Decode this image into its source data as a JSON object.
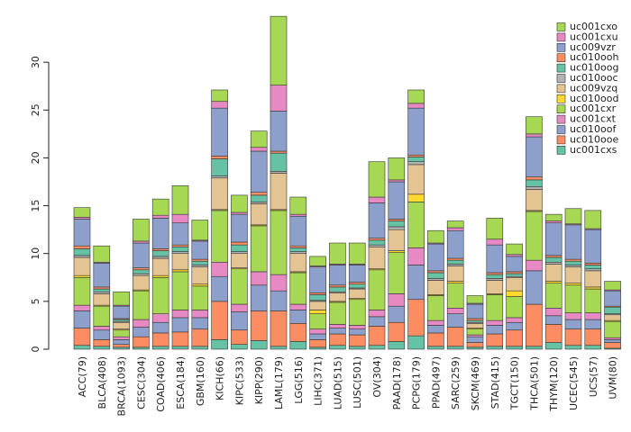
{
  "chart_data": {
    "type": "bar",
    "stacked": true,
    "title": "",
    "xlabel": "",
    "ylabel": "",
    "ylim": [
      0,
      35
    ],
    "yticks": [
      0,
      5,
      10,
      15,
      20,
      25,
      30
    ],
    "categories": [
      "ACC(79)",
      "BLCA(408)",
      "BRCA(1093)",
      "CESC(304)",
      "COAD(406)",
      "ESCA(184)",
      "GBM(160)",
      "KICH(66)",
      "KIPC(533)",
      "KIPP(290)",
      "LAML(179)",
      "LGG(516)",
      "LIHC(371)",
      "LUAD(515)",
      "LUSC(501)",
      "OV(304)",
      "PAAD(178)",
      "PCPG(179)",
      "PPAD(497)",
      "SARC(259)",
      "SKCM(469)",
      "STAD(415)",
      "TGCT(150)",
      "THCA(501)",
      "THYM(120)",
      "UCEC(545)",
      "UCS(57)",
      "UVM(80)"
    ],
    "series": [
      {
        "name": "uc001cxs",
        "color": "#66c2a5",
        "values": [
          0.4,
          0.3,
          0.2,
          0.2,
          0.3,
          0.3,
          0.3,
          1.0,
          0.5,
          0.9,
          0.3,
          0.8,
          0.2,
          0.4,
          0.3,
          0.4,
          0.8,
          1.4,
          0.3,
          0.3,
          0.2,
          0.3,
          0.3,
          0.3,
          0.7,
          0.4,
          0.4,
          0.1
        ]
      },
      {
        "name": "uc010ooe",
        "color": "#fc8d62",
        "values": [
          1.8,
          0.7,
          0.3,
          1.1,
          1.4,
          1.5,
          1.8,
          4.0,
          1.5,
          3.1,
          3.7,
          1.9,
          0.8,
          1.2,
          1.2,
          2.0,
          2.0,
          3.8,
          1.4,
          2.0,
          0.5,
          1.3,
          1.7,
          4.4,
          1.9,
          1.7,
          1.7,
          0.6
        ]
      },
      {
        "name": "uc010oof",
        "color": "#8da0cb",
        "values": [
          1.8,
          1.0,
          0.5,
          1.0,
          1.1,
          1.5,
          1.2,
          2.6,
          1.9,
          2.7,
          2.1,
          1.4,
          0.6,
          0.6,
          0.6,
          1.0,
          1.7,
          3.6,
          0.8,
          1.4,
          0.6,
          0.9,
          0.8,
          3.5,
          0.9,
          1.0,
          1.0,
          0.3
        ]
      },
      {
        "name": "uc001cxt",
        "color": "#e78ac3",
        "values": [
          0.6,
          0.4,
          0.3,
          0.8,
          0.9,
          0.8,
          0.8,
          1.5,
          0.8,
          1.4,
          1.7,
          0.6,
          0.5,
          0.4,
          0.4,
          0.7,
          1.3,
          1.8,
          0.5,
          0.6,
          0.2,
          0.5,
          0.5,
          1.1,
          0.8,
          0.7,
          0.7,
          0.2
        ]
      },
      {
        "name": "uc001cxr",
        "color": "#a6d854",
        "values": [
          2.9,
          2.1,
          0.7,
          3.0,
          3.8,
          4.0,
          2.5,
          5.4,
          3.7,
          4.8,
          6.7,
          3.3,
          1.6,
          2.3,
          2.7,
          4.2,
          4.3,
          4.8,
          2.6,
          2.6,
          0.6,
          2.7,
          2.2,
          5.1,
          2.6,
          2.9,
          2.5,
          1.7
        ]
      },
      {
        "name": "uc010ood",
        "color": "#ffd92f",
        "values": [
          0.2,
          0.1,
          0.1,
          0.1,
          0.2,
          0.2,
          0.2,
          0.1,
          0.1,
          0.1,
          0.1,
          0.1,
          0.4,
          0.1,
          0.1,
          0.1,
          0.2,
          0.8,
          0.1,
          0.2,
          0.1,
          0.1,
          0.6,
          0.1,
          0.2,
          0.2,
          0.2,
          0.1
        ]
      },
      {
        "name": "uc009vzq",
        "color": "#e5c494",
        "values": [
          1.9,
          1.2,
          0.7,
          1.5,
          1.8,
          1.7,
          1.8,
          3.3,
          1.5,
          2.2,
          3.8,
          1.9,
          0.9,
          0.9,
          1.0,
          2.3,
          2.2,
          3.1,
          1.5,
          1.6,
          0.5,
          1.4,
          1.4,
          2.2,
          1.8,
          1.7,
          1.7,
          0.6
        ]
      },
      {
        "name": "uc010ooc",
        "color": "#b3b3b3",
        "values": [
          0.2,
          0.2,
          0.1,
          0.2,
          0.2,
          0.2,
          0.2,
          0.2,
          0.2,
          0.2,
          0.2,
          0.2,
          0.1,
          0.1,
          0.1,
          0.2,
          0.3,
          0.3,
          0.2,
          0.2,
          0.1,
          0.2,
          0.1,
          0.3,
          0.2,
          0.2,
          0.2,
          0.1
        ]
      },
      {
        "name": "uc010oog",
        "color": "#66c2a5",
        "values": [
          0.7,
          0.3,
          0.2,
          0.4,
          0.6,
          0.5,
          0.4,
          1.8,
          0.7,
          0.7,
          1.9,
          0.4,
          0.6,
          0.5,
          0.4,
          0.5,
          0.6,
          0.5,
          0.6,
          0.4,
          0.2,
          0.4,
          0.3,
          0.7,
          0.5,
          0.4,
          0.4,
          0.7
        ]
      },
      {
        "name": "uc010ooh",
        "color": "#fc8d62",
        "values": [
          0.3,
          0.2,
          0.1,
          0.2,
          0.2,
          0.2,
          0.2,
          0.3,
          0.3,
          0.3,
          0.2,
          0.2,
          0.2,
          0.2,
          0.2,
          0.2,
          0.2,
          0.2,
          0.2,
          0.2,
          0.2,
          0.2,
          0.2,
          0.3,
          0.2,
          0.2,
          0.2,
          0.1
        ]
      },
      {
        "name": "uc009vzr",
        "color": "#8da0cb",
        "values": [
          2.8,
          2.5,
          1.3,
          2.6,
          3.2,
          2.3,
          1.9,
          5.0,
          2.9,
          4.3,
          4.2,
          3.1,
          2.7,
          2.1,
          1.8,
          3.7,
          3.9,
          4.9,
          2.8,
          2.9,
          1.5,
          2.9,
          1.6,
          4.2,
          3.4,
          3.6,
          3.5,
          1.6
        ]
      },
      {
        "name": "uc001cxu",
        "color": "#e78ac3",
        "values": [
          0.2,
          0.1,
          0.1,
          0.2,
          0.3,
          0.9,
          0.1,
          0.7,
          0.2,
          0.4,
          2.7,
          0.2,
          0.1,
          0.1,
          0.1,
          0.6,
          0.2,
          0.5,
          0.1,
          0.3,
          0.1,
          0.6,
          0.2,
          0.3,
          0.2,
          0.1,
          0.1,
          0.1
        ]
      },
      {
        "name": "uc001cxo",
        "color": "#a6d854",
        "values": [
          1.0,
          1.7,
          1.4,
          2.3,
          1.7,
          3.0,
          2.1,
          1.2,
          1.8,
          1.7,
          7.2,
          1.8,
          1.0,
          2.2,
          2.2,
          3.7,
          2.3,
          1.4,
          1.3,
          0.7,
          0.8,
          2.2,
          1.1,
          1.8,
          0.7,
          1.6,
          1.9,
          0.9
        ]
      }
    ]
  }
}
